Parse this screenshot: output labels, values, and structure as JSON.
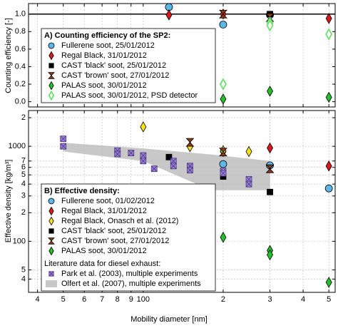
{
  "chart_data": [
    {
      "type": "scatter",
      "ylabel": "Counting efficiency [-]",
      "legend_title": "A) Counting efficiency of the SP2:",
      "log_x": true,
      "xlim": [
        37,
        528
      ],
      "ylim": [
        -0.06,
        1.12
      ],
      "yticks": [
        {
          "value": 0,
          "label": "0.0"
        },
        0.2,
        0.4,
        0.6,
        0.8,
        {
          "value": 1,
          "label": "1.0"
        }
      ],
      "reference_line": 1,
      "grid": true,
      "series": [
        {
          "name": "Fullerene soot, 25/01/2012",
          "marker": "circle",
          "color": "#5bb8e8",
          "x": [
            125,
            200,
            300
          ],
          "values": [
            1.08,
            0.88,
            0.99
          ]
        },
        {
          "name": "Regal Black, 31/01/2012",
          "marker": "diamond",
          "color": "#d7191c",
          "x": [
            125,
            200,
            500
          ],
          "values": [
            0.99,
            1.0,
            0.95
          ]
        },
        {
          "name": "CAST 'black' soot, 25/01/2012",
          "marker": "square",
          "color": "#000000",
          "x": [
            300
          ],
          "values": [
            1.0
          ]
        },
        {
          "name": "CAST 'brown' soot, 27/01/2012",
          "marker": "hourglass",
          "color": "#8b3a1a",
          "x": [
            200,
            300
          ],
          "values": [
            1.0,
            0.96
          ]
        },
        {
          "name": "PALAS soot, 30/01/2012",
          "marker": "diamond",
          "color": "#22c02a",
          "x": [
            200,
            300,
            500
          ],
          "values": [
            0.03,
            0.12,
            0.05
          ]
        },
        {
          "name": "PALAS soot, 30/01/2012, PSD detector",
          "marker": "open-diamond",
          "color": "#5ee05e",
          "x": [
            200,
            300,
            300,
            500
          ],
          "values": [
            0.2,
            0.9,
            0.87,
            0.77
          ]
        }
      ]
    },
    {
      "type": "scatter",
      "xlabel": "Mobility diameter [nm]",
      "ylabel": "Effective density [kg/m³]",
      "legend_title": "B) Effective density:",
      "legend_subtitle": "Literature data for diesel exhaust:",
      "log_x": true,
      "log_y": true,
      "xlim": [
        37,
        528
      ],
      "ylim": [
        29,
        2380
      ],
      "xticks": [
        {
          "value": 40,
          "label": "4"
        },
        {
          "value": 50,
          "label": "5"
        },
        {
          "value": 60,
          "label": "6"
        },
        {
          "value": 70,
          "label": "7"
        },
        {
          "value": 80,
          "label": "8"
        },
        {
          "value": 90,
          "label": "9"
        },
        100,
        {
          "value": 200,
          "label": "2"
        },
        {
          "value": 300,
          "label": "3"
        },
        {
          "value": 400,
          "label": "4"
        },
        {
          "value": 500,
          "label": "5"
        }
      ],
      "yticks": [
        {
          "value": 2000,
          "label": "2"
        },
        1000,
        {
          "value": 700,
          "label": "7"
        },
        {
          "value": 600,
          "label": "6"
        },
        {
          "value": 500,
          "label": "5"
        },
        {
          "value": 400,
          "label": "4"
        },
        {
          "value": 300,
          "label": "3"
        },
        {
          "value": 200,
          "label": "2"
        },
        100,
        {
          "value": 50,
          "label": "5"
        },
        {
          "value": 40,
          "label": "4"
        }
      ],
      "grid": true,
      "series": [
        {
          "name": "Fullerene soot, 01/02/2012",
          "marker": "circle",
          "color": "#5bb8e8",
          "x": [
            200,
            300,
            500
          ],
          "values": [
            650,
            630,
            360
          ]
        },
        {
          "name": "Regal Black, 31/01/2012",
          "marker": "diamond",
          "color": "#d7191c",
          "x": [
            200,
            300,
            500
          ],
          "values": [
            880,
            960,
            620
          ]
        },
        {
          "name": "Regal Black, Onasch et al. (2012)",
          "marker": "diamond",
          "color": "#f5e21b",
          "x": [
            100,
            150,
            200,
            250
          ],
          "values": [
            1600,
            990,
            900,
            880
          ]
        },
        {
          "name": "CAST 'black' soot, 25/01/2012",
          "marker": "square",
          "color": "#000000",
          "x": [
            125,
            200,
            300
          ],
          "values": [
            770,
            480,
            330
          ]
        },
        {
          "name": "CAST 'brown' soot, 27/01/2012",
          "marker": "hourglass",
          "color": "#8b3a1a",
          "x": [
            150,
            200,
            300
          ],
          "values": [
            1100,
            870,
            580
          ]
        },
        {
          "name": "PALAS soot, 30/01/2012",
          "marker": "diamond",
          "color": "#22c02a",
          "x": [
            200,
            300,
            300,
            500
          ],
          "values": [
            110,
            80,
            72,
            37
          ]
        },
        {
          "name": "Park et al. (2003), multiple experiments",
          "marker": "xsquare",
          "color": "#9b7fd6",
          "x": [
            50,
            50,
            80,
            80,
            90,
            100,
            100,
            110,
            130,
            130,
            150,
            150,
            200,
            200,
            250,
            250
          ],
          "values": [
            1200,
            1000,
            900,
            830,
            850,
            800,
            700,
            580,
            700,
            620,
            620,
            560,
            550,
            520,
            450,
            400
          ]
        },
        {
          "name": "Olfert et al. (2007), multiple experiments",
          "marker": "area",
          "color": "#c8c8c8",
          "x": [
            50,
            100,
            180,
            300
          ],
          "values": [
            1090,
            950,
            820,
            700
          ],
          "lower": [
            880,
            700,
            345,
            345
          ]
        }
      ]
    }
  ]
}
